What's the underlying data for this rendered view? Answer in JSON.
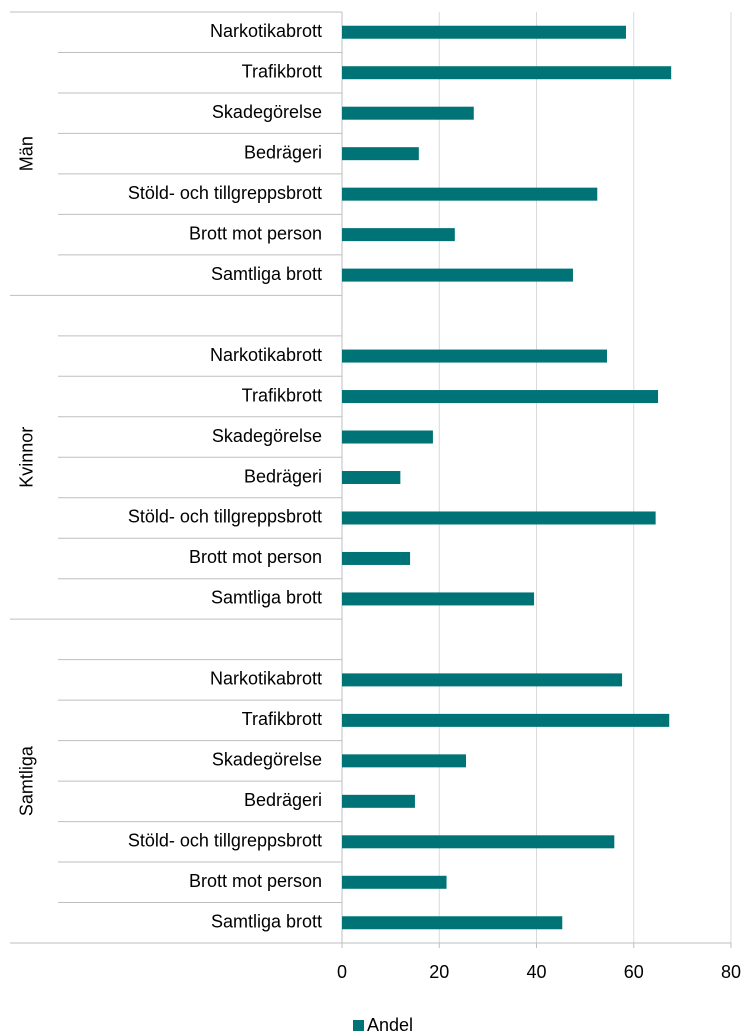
{
  "chart_data": {
    "type": "bar",
    "orientation": "horizontal",
    "legend": "Andel",
    "color": "#007377",
    "groups": [
      {
        "name": "Män",
        "categories": [
          "Narkotikabrott",
          "Trafikbrott",
          "Skadegörelse",
          "Bedrägeri",
          "Stöld- och tillgreppsbrott",
          "Brott mot person",
          "Samtliga brott"
        ],
        "values": [
          58.4,
          67.7,
          27.1,
          15.8,
          52.5,
          23.2,
          47.5
        ]
      },
      {
        "name": "Kvinnor",
        "categories": [
          "Narkotikabrott",
          "Trafikbrott",
          "Skadegörelse",
          "Bedrägeri",
          "Stöld- och tillgreppsbrott",
          "Brott mot person",
          "Samtliga brott"
        ],
        "values": [
          54.5,
          65.0,
          18.7,
          12.0,
          64.5,
          14.0,
          39.5
        ]
      },
      {
        "name": "Samtliga",
        "categories": [
          "Narkotikabrott",
          "Trafikbrott",
          "Skadegörelse",
          "Bedrägeri",
          "Stöld- och tillgreppsbrott",
          "Brott mot person",
          "Samtliga brott"
        ],
        "values": [
          57.6,
          67.3,
          25.5,
          15.0,
          56.0,
          21.5,
          45.3
        ]
      }
    ],
    "xlim": [
      0,
      80
    ],
    "xticks": [
      0,
      20,
      40,
      60,
      80
    ],
    "grid": true
  }
}
